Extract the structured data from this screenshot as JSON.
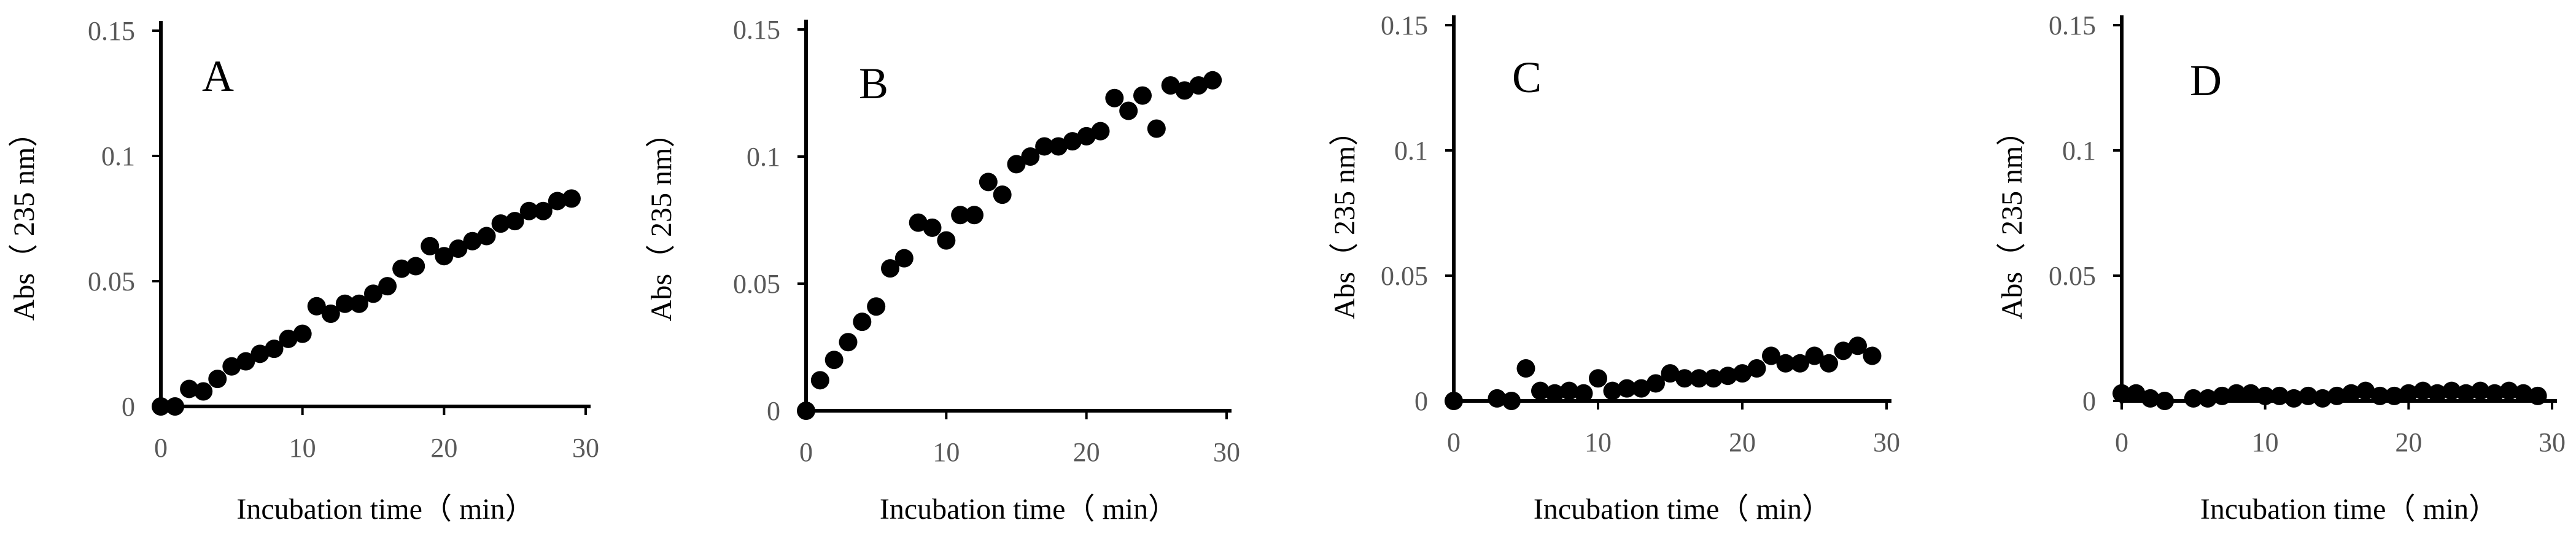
{
  "colors": {
    "marker": "#000000",
    "axis": "#000000",
    "tick_text": "#595959",
    "background": "#ffffff"
  },
  "chart_data": [
    {
      "type": "scatter",
      "panel_label": "A",
      "xlabel": "Incubation time（ min）",
      "ylabel": "Abs（ 235 nm）",
      "xlim": [
        0,
        30
      ],
      "ylim": [
        0,
        0.15
      ],
      "xticks": [
        "0",
        "10",
        "20",
        "30"
      ],
      "yticks": [
        "0",
        "0.05",
        "0.1",
        "0.15"
      ],
      "grid": false,
      "x": [
        0,
        1,
        2,
        3,
        4,
        5,
        6,
        7,
        8,
        9,
        10,
        11,
        12,
        13,
        14,
        15,
        16,
        17,
        18,
        19,
        20,
        21,
        22,
        23,
        24,
        25,
        26,
        27,
        28,
        29
      ],
      "y": [
        0.0,
        0.0,
        0.007,
        0.006,
        0.011,
        0.016,
        0.018,
        0.021,
        0.023,
        0.027,
        0.029,
        0.04,
        0.037,
        0.041,
        0.041,
        0.045,
        0.048,
        0.055,
        0.056,
        0.064,
        0.06,
        0.063,
        0.066,
        0.068,
        0.073,
        0.074,
        0.078,
        0.078,
        0.082,
        0.083
      ]
    },
    {
      "type": "scatter",
      "panel_label": "B",
      "xlabel": "Incubation time（ min）",
      "ylabel": "Abs（ 235 nm）",
      "xlim": [
        0,
        30
      ],
      "ylim": [
        0,
        0.15
      ],
      "xticks": [
        "0",
        "10",
        "20",
        "30"
      ],
      "yticks": [
        "0",
        "0.05",
        "0.1",
        "0.15"
      ],
      "grid": false,
      "x": [
        0,
        1,
        2,
        3,
        4,
        5,
        6,
        7,
        8,
        9,
        10,
        11,
        12,
        13,
        14,
        15,
        16,
        17,
        18,
        19,
        20,
        21,
        22,
        23,
        24,
        25,
        26,
        27,
        28,
        29
      ],
      "y": [
        0.0,
        0.012,
        0.02,
        0.027,
        0.035,
        0.041,
        0.056,
        0.06,
        0.074,
        0.072,
        0.067,
        0.077,
        0.077,
        0.09,
        0.085,
        0.097,
        0.1,
        0.104,
        0.104,
        0.106,
        0.108,
        0.11,
        0.123,
        0.118,
        0.124,
        0.111,
        0.128,
        0.126,
        0.128,
        0.13
      ]
    },
    {
      "type": "scatter",
      "panel_label": "C",
      "xlabel": "Incubation time（ min）",
      "ylabel": "Abs（ 235 nm）",
      "xlim": [
        0,
        30
      ],
      "ylim": [
        0,
        0.15
      ],
      "xticks": [
        "0",
        "10",
        "20",
        "30"
      ],
      "yticks": [
        "0",
        "0.05",
        "0.1",
        "0.15"
      ],
      "grid": false,
      "x": [
        0,
        3,
        4,
        5,
        6,
        7,
        8,
        9,
        10,
        11,
        12,
        13,
        14,
        15,
        16,
        17,
        18,
        19,
        20,
        21,
        22,
        23,
        24,
        25,
        26,
        27,
        28,
        29
      ],
      "y": [
        0.0,
        0.001,
        0.0,
        0.013,
        0.004,
        0.003,
        0.004,
        0.003,
        0.009,
        0.004,
        0.005,
        0.005,
        0.007,
        0.011,
        0.009,
        0.009,
        0.009,
        0.01,
        0.011,
        0.013,
        0.018,
        0.015,
        0.015,
        0.018,
        0.015,
        0.02,
        0.022,
        0.018
      ]
    },
    {
      "type": "scatter",
      "panel_label": "D",
      "xlabel": "Incubation time（ min）",
      "ylabel": "Abs（ 235 nm）",
      "xlim": [
        0,
        30
      ],
      "ylim": [
        0,
        0.15
      ],
      "xticks": [
        "0",
        "10",
        "20",
        "30"
      ],
      "yticks": [
        "0",
        "0.05",
        "0.1",
        "0.15"
      ],
      "grid": false,
      "x": [
        0,
        1,
        2,
        3,
        5,
        6,
        7,
        8,
        9,
        10,
        11,
        12,
        13,
        14,
        15,
        16,
        17,
        18,
        19,
        20,
        21,
        22,
        23,
        24,
        25,
        26,
        27,
        28,
        29
      ],
      "y": [
        0.003,
        0.003,
        0.001,
        0.0,
        0.001,
        0.001,
        0.002,
        0.003,
        0.003,
        0.002,
        0.002,
        0.001,
        0.002,
        0.001,
        0.002,
        0.003,
        0.004,
        0.002,
        0.002,
        0.003,
        0.004,
        0.003,
        0.004,
        0.003,
        0.004,
        0.003,
        0.004,
        0.003,
        0.002
      ]
    }
  ]
}
